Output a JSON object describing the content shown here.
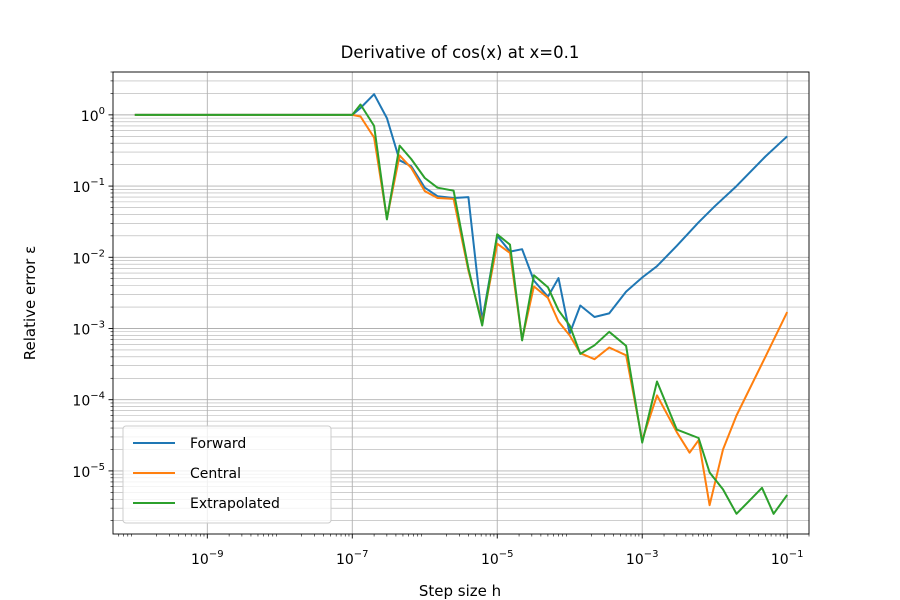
{
  "chart_data": {
    "type": "line",
    "title": "Derivative of cos(x) at x=0.1",
    "xlabel": "Step size h",
    "ylabel": "Relative error ε",
    "xscale": "log",
    "yscale": "log",
    "xlim": [
      5e-11,
      0.2
    ],
    "ylim": [
      1.3e-06,
      4
    ],
    "x_ticks": [
      {
        "value": 1e-09,
        "mantissa": "10",
        "exp": "−9"
      },
      {
        "value": 1e-07,
        "mantissa": "10",
        "exp": "−7"
      },
      {
        "value": 1e-05,
        "mantissa": "10",
        "exp": "−5"
      },
      {
        "value": 0.001,
        "mantissa": "10",
        "exp": "−3"
      },
      {
        "value": 0.1,
        "mantissa": "10",
        "exp": "−1"
      }
    ],
    "y_ticks": [
      {
        "value": 1e-05,
        "mantissa": "10",
        "exp": "−5"
      },
      {
        "value": 0.0001,
        "mantissa": "10",
        "exp": "−4"
      },
      {
        "value": 0.001,
        "mantissa": "10",
        "exp": "−3"
      },
      {
        "value": 0.01,
        "mantissa": "10",
        "exp": "−2"
      },
      {
        "value": 0.1,
        "mantissa": "10",
        "exp": "−1"
      },
      {
        "value": 1,
        "mantissa": "10",
        "exp": "0"
      }
    ],
    "grid": "major and minor",
    "legend_position": "lower-left",
    "series": [
      {
        "name": "Forward",
        "color": "#1f77b4",
        "points": [
          [
            1e-10,
            1.0
          ],
          [
            1e-07,
            1.0
          ],
          [
            1.3e-07,
            1.25
          ],
          [
            2e-07,
            1.95
          ],
          [
            3e-07,
            0.9
          ],
          [
            4.5e-07,
            0.23
          ],
          [
            6.5e-07,
            0.19
          ],
          [
            1e-06,
            0.095
          ],
          [
            1.5e-06,
            0.072
          ],
          [
            2.5e-06,
            0.068
          ],
          [
            4e-06,
            0.07
          ],
          [
            6.2e-06,
            0.0013
          ],
          [
            1e-05,
            0.02
          ],
          [
            1.5e-05,
            0.012
          ],
          [
            2.2e-05,
            0.013
          ],
          [
            3.2e-05,
            0.0047
          ],
          [
            5e-05,
            0.0028
          ],
          [
            7e-05,
            0.0051
          ],
          [
            0.0001,
            0.00085
          ],
          [
            0.00014,
            0.0021
          ],
          [
            0.00022,
            0.00145
          ],
          [
            0.00035,
            0.00163
          ],
          [
            0.0006,
            0.0033
          ],
          [
            0.001,
            0.0052
          ],
          [
            0.0016,
            0.0075
          ],
          [
            0.003,
            0.0145
          ],
          [
            0.006,
            0.031
          ],
          [
            0.01,
            0.052
          ],
          [
            0.02,
            0.1
          ],
          [
            0.05,
            0.26
          ],
          [
            0.1,
            0.5
          ]
        ]
      },
      {
        "name": "Central",
        "color": "#ff7f0e",
        "points": [
          [
            1e-10,
            1.0
          ],
          [
            1e-07,
            1.0
          ],
          [
            1.3e-07,
            0.95
          ],
          [
            2e-07,
            0.48
          ],
          [
            3e-07,
            0.035
          ],
          [
            4.5e-07,
            0.27
          ],
          [
            6.5e-07,
            0.18
          ],
          [
            1e-06,
            0.085
          ],
          [
            1.5e-06,
            0.068
          ],
          [
            2.5e-06,
            0.066
          ],
          [
            4e-06,
            0.0065
          ],
          [
            6.2e-06,
            0.0012
          ],
          [
            1e-05,
            0.0155
          ],
          [
            1.5e-05,
            0.0115
          ],
          [
            2.2e-05,
            0.0007
          ],
          [
            3.2e-05,
            0.0039
          ],
          [
            5e-05,
            0.0027
          ],
          [
            7e-05,
            0.00125
          ],
          [
            0.0001,
            0.0008
          ],
          [
            0.00014,
            0.00045
          ],
          [
            0.00022,
            0.00037
          ],
          [
            0.00035,
            0.00054
          ],
          [
            0.0006,
            0.00042
          ],
          [
            0.001,
            2.7e-05
          ],
          [
            0.0016,
            0.000115
          ],
          [
            0.003,
            3.5e-05
          ],
          [
            0.0045,
            1.8e-05
          ],
          [
            0.006,
            2.7e-05
          ],
          [
            0.0085,
            3.3e-06
          ],
          [
            0.013,
            2e-05
          ],
          [
            0.02,
            6e-05
          ],
          [
            0.05,
            0.0004
          ],
          [
            0.1,
            0.0017
          ]
        ]
      },
      {
        "name": "Extrapolated",
        "color": "#2ca02c",
        "points": [
          [
            1e-10,
            1.0
          ],
          [
            1e-07,
            1.0
          ],
          [
            1.3e-07,
            1.4
          ],
          [
            2e-07,
            0.7
          ],
          [
            3e-07,
            0.034
          ],
          [
            4.5e-07,
            0.37
          ],
          [
            6.5e-07,
            0.24
          ],
          [
            1e-06,
            0.13
          ],
          [
            1.5e-06,
            0.095
          ],
          [
            2.5e-06,
            0.086
          ],
          [
            4e-06,
            0.007
          ],
          [
            6.2e-06,
            0.0011
          ],
          [
            1e-05,
            0.021
          ],
          [
            1.5e-05,
            0.015
          ],
          [
            2.2e-05,
            0.00068
          ],
          [
            3.2e-05,
            0.0056
          ],
          [
            5e-05,
            0.0038
          ],
          [
            7e-05,
            0.0018
          ],
          [
            0.0001,
            0.0011
          ],
          [
            0.00014,
            0.00044
          ],
          [
            0.00022,
            0.00058
          ],
          [
            0.00035,
            0.0009
          ],
          [
            0.0006,
            0.00057
          ],
          [
            0.001,
            2.5e-05
          ],
          [
            0.0016,
            0.00018
          ],
          [
            0.003,
            3.8e-05
          ],
          [
            0.006,
            2.9e-05
          ],
          [
            0.0085,
            9.5e-06
          ],
          [
            0.013,
            5.5e-06
          ],
          [
            0.02,
            2.5e-06
          ],
          [
            0.03,
            3.8e-06
          ],
          [
            0.045,
            5.8e-06
          ],
          [
            0.065,
            2.5e-06
          ],
          [
            0.1,
            4.6e-06
          ]
        ]
      }
    ]
  }
}
